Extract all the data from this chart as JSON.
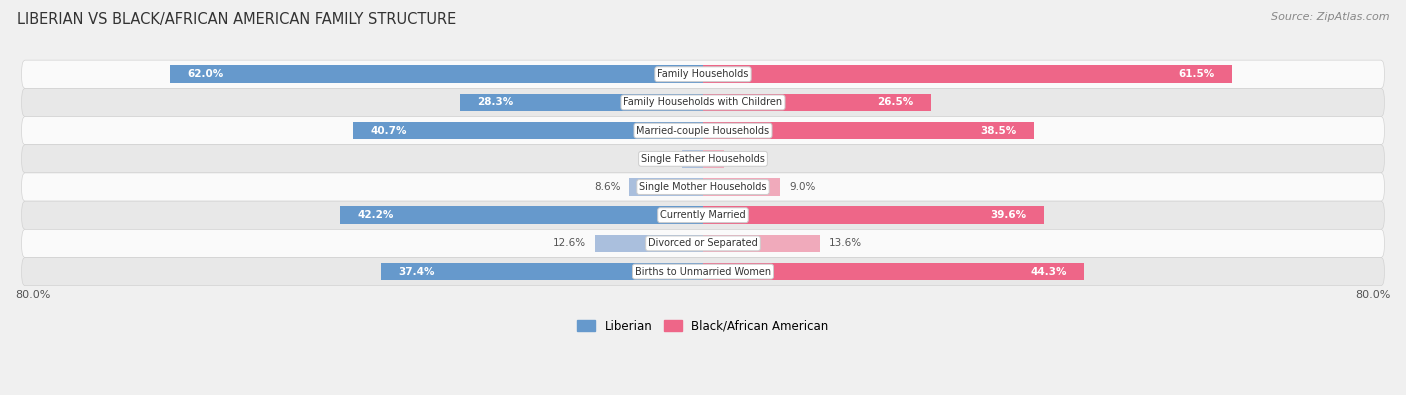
{
  "title": "LIBERIAN VS BLACK/AFRICAN AMERICAN FAMILY STRUCTURE",
  "source": "Source: ZipAtlas.com",
  "categories": [
    "Family Households",
    "Family Households with Children",
    "Married-couple Households",
    "Single Father Households",
    "Single Mother Households",
    "Currently Married",
    "Divorced or Separated",
    "Births to Unmarried Women"
  ],
  "liberian_values": [
    62.0,
    28.3,
    40.7,
    2.5,
    8.6,
    42.2,
    12.6,
    37.4
  ],
  "black_values": [
    61.5,
    26.5,
    38.5,
    2.4,
    9.0,
    39.6,
    13.6,
    44.3
  ],
  "liberian_color": "#6699CC",
  "liberian_color_light": "#AABFDD",
  "black_color": "#EE6688",
  "black_color_light": "#F0AABB",
  "axis_max": 80.0,
  "bg_color": "#F0F0F0",
  "row_bg_light": "#FAFAFA",
  "row_bg_dark": "#E8E8E8",
  "label_dark": "#555555",
  "label_white": "#FFFFFF",
  "threshold": 20.0
}
